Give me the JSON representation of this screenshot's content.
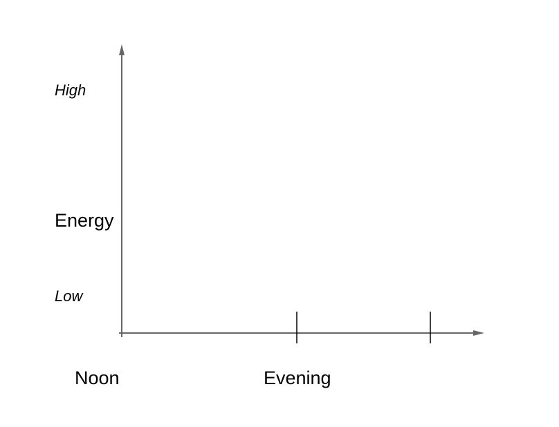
{
  "chart_data": {
    "type": "line",
    "title": "",
    "xlabel": "",
    "ylabel": "Energy",
    "y_levels": {
      "high": "High",
      "low": "Low"
    },
    "x_tick_labels": [
      "Noon",
      "Evening",
      ""
    ],
    "x_ticks": 3,
    "series": [],
    "grid": false,
    "legend": "none",
    "colors": {
      "axis": "#666666",
      "tick": "#000000",
      "text": "#000000"
    }
  }
}
